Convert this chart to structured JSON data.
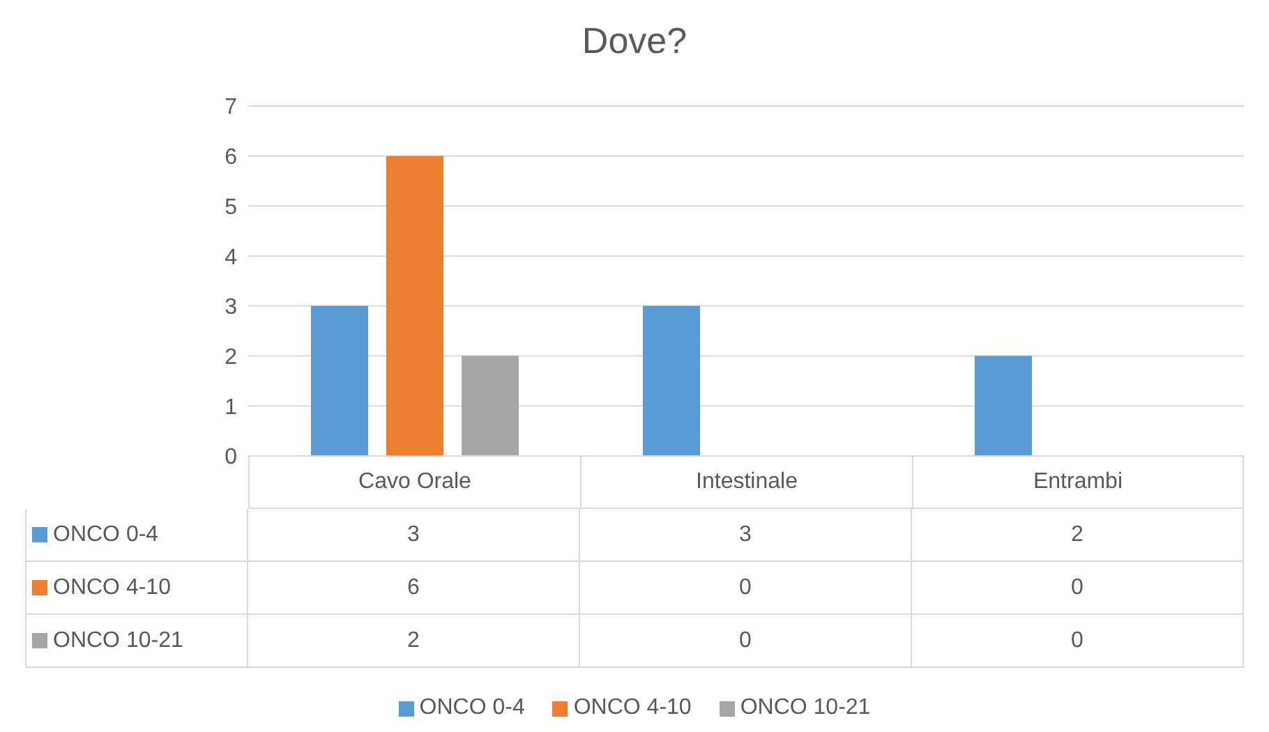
{
  "chart_data": {
    "type": "bar",
    "title": "Dove?",
    "categories": [
      "Cavo Orale",
      "Intestinale",
      "Entrambi"
    ],
    "series": [
      {
        "name": "ONCO 0-4",
        "color": "#5b9bd5",
        "values": [
          3,
          3,
          2
        ]
      },
      {
        "name": "ONCO 4-10",
        "color": "#ed7d31",
        "values": [
          6,
          0,
          0
        ]
      },
      {
        "name": "ONCO 10-21",
        "color": "#a5a5a5",
        "values": [
          2,
          0,
          0
        ]
      }
    ],
    "ylim": [
      0,
      7
    ],
    "yticks": [
      0,
      1,
      2,
      3,
      4,
      5,
      6,
      7
    ],
    "grid": "y",
    "legend": "bottom",
    "data_labels": true
  }
}
